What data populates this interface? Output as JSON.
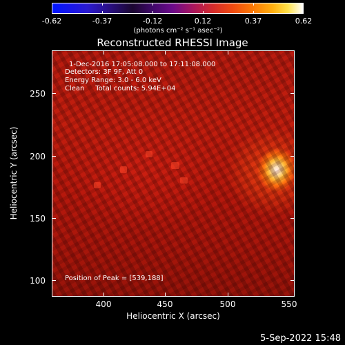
{
  "colorbar": {
    "tick_labels": [
      "-0.62",
      "-0.37",
      "-0.12",
      "0.12",
      "0.37",
      "0.62"
    ],
    "units": "(photons cm⁻² s⁻¹ asec⁻²)"
  },
  "title": "Reconstructed RHESSI Image",
  "annotations": {
    "time_range": "1-Dec-2016 17:05:08.000 to 17:11:08.000",
    "detectors": "Detectors: 3F 9F, Att 0",
    "energy_range": "Energy Range: 3.0 - 6.0 keV",
    "clean_counts": "Clean     Total counts: 5.94E+04",
    "peak_position": "Position of Peak = [539,188]"
  },
  "axes": {
    "x_title": "Heliocentric X (arcsec)",
    "y_title": "Heliocentric Y (arcsec)",
    "x_ticks": [
      "400",
      "450",
      "500",
      "550"
    ],
    "y_ticks": [
      "100",
      "150",
      "200",
      "250"
    ]
  },
  "timestamp": "5-Sep-2022 15:48"
}
